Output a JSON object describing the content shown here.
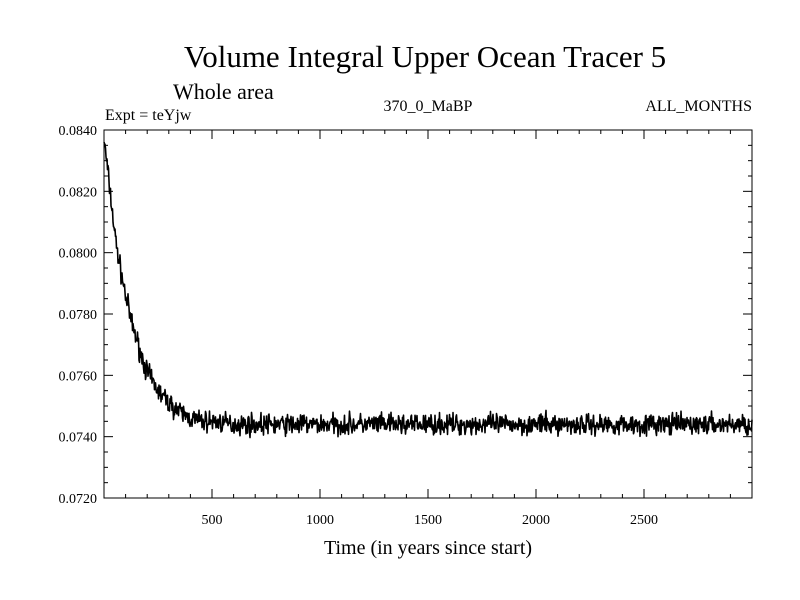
{
  "chart_data": {
    "type": "line",
    "title": "Volume Integral Upper Ocean Tracer 5",
    "subtitle": "Whole area",
    "annotations": {
      "left": "Expt = teYjw",
      "center": "370_0_MaBP",
      "right": "ALL_MONTHS"
    },
    "xlabel": "Time (in years since start)",
    "ylabel": "",
    "xlim": [
      0,
      3000
    ],
    "ylim": [
      0.072,
      0.084
    ],
    "xticks": [
      500,
      1000,
      1500,
      2000,
      2500
    ],
    "xtick_labels": [
      "500",
      "1000",
      "1500",
      "2000",
      "2500"
    ],
    "yticks": [
      0.072,
      0.074,
      0.076,
      0.078,
      0.08,
      0.082,
      0.084
    ],
    "ytick_labels": [
      "0.0720",
      "0.0740",
      "0.0760",
      "0.0780",
      "0.0800",
      "0.0820",
      "0.0840"
    ],
    "grid": false,
    "series": [
      {
        "name": "Upper Ocean Tracer 5",
        "x": [
          0,
          25,
          50,
          75,
          100,
          125,
          150,
          175,
          200,
          250,
          300,
          350,
          400,
          450,
          500,
          600,
          700,
          800,
          900,
          1000,
          1200,
          1400,
          1600,
          1800,
          2000,
          2200,
          2400,
          2600,
          2800,
          3000
        ],
        "values": [
          0.0837,
          0.0822,
          0.0806,
          0.0795,
          0.0786,
          0.0778,
          0.0772,
          0.0766,
          0.0761,
          0.0755,
          0.0751,
          0.0748,
          0.0746,
          0.0745,
          0.0745,
          0.0744,
          0.0744,
          0.0744,
          0.0744,
          0.0744,
          0.0744,
          0.0744,
          0.0744,
          0.0744,
          0.0744,
          0.0744,
          0.0744,
          0.0744,
          0.0744,
          0.0744
        ],
        "noise_amplitude": 0.0005
      }
    ]
  }
}
